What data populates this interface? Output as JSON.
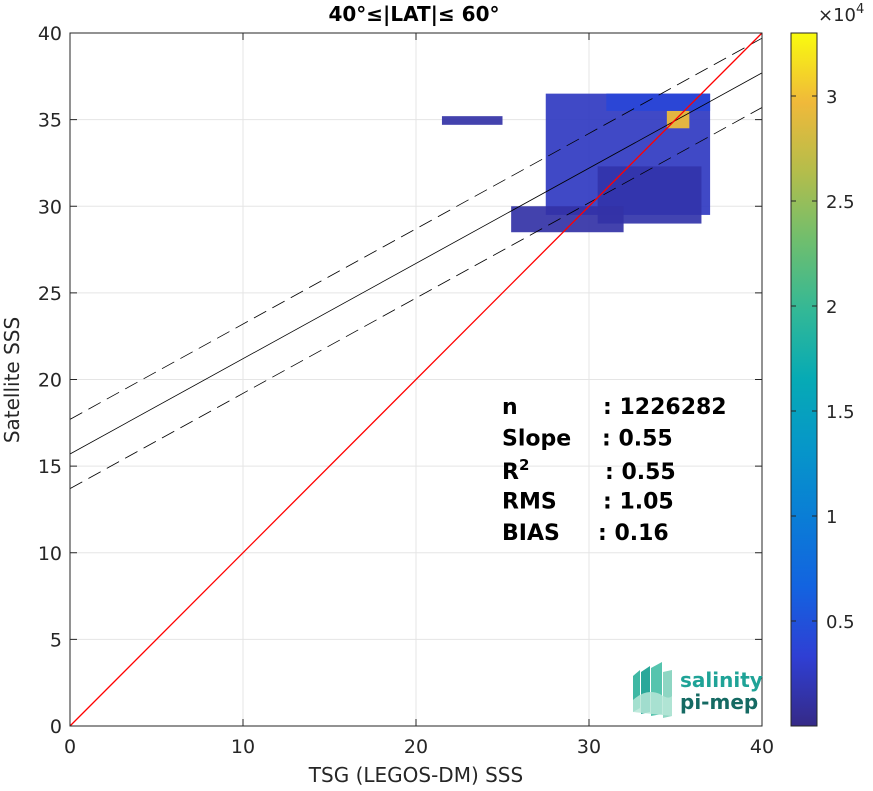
{
  "chart_data": {
    "type": "heatmap",
    "title": "40°≤|LAT|≤ 60°",
    "xlabel": "TSG (LEGOS-DM) SSS",
    "ylabel": "Satellite SSS",
    "xlim": [
      0,
      40
    ],
    "ylim": [
      0,
      40
    ],
    "xticks": [
      "0",
      "10",
      "20",
      "30",
      "40"
    ],
    "yticks": [
      "0",
      "5",
      "10",
      "15",
      "20",
      "25",
      "30",
      "35",
      "40"
    ],
    "grid": true,
    "colorbar": {
      "range": [
        0,
        33000
      ],
      "multiplier": "×10",
      "exponent": "4",
      "ticks": [
        {
          "value": 5000,
          "label": "0.5"
        },
        {
          "value": 10000,
          "label": "1"
        },
        {
          "value": 15000,
          "label": "1.5"
        },
        {
          "value": 20000,
          "label": "2"
        },
        {
          "value": 25000,
          "label": "2.5"
        },
        {
          "value": 30000,
          "label": "3"
        }
      ]
    },
    "one_to_one_line": {
      "x": [
        0,
        40
      ],
      "y": [
        0,
        40
      ],
      "color": "#ff0000"
    },
    "regression_line": {
      "x": [
        0,
        40
      ],
      "y": [
        15.7,
        37.7
      ],
      "color": "#000000"
    },
    "regression_bounds": [
      {
        "x": [
          0,
          40
        ],
        "y": [
          17.7,
          39.7
        ]
      },
      {
        "x": [
          0,
          40
        ],
        "y": [
          13.7,
          35.7
        ]
      }
    ],
    "density_regions": [
      {
        "x": [
          27.5,
          37
        ],
        "y": [
          29.5,
          36.5
        ],
        "density": 2500
      },
      {
        "x": [
          30.5,
          36.5
        ],
        "y": [
          29,
          32.3
        ],
        "density": 1500
      },
      {
        "x": [
          25.5,
          32
        ],
        "y": [
          28.5,
          30
        ],
        "density": 800
      },
      {
        "x": [
          21.5,
          25
        ],
        "y": [
          34.7,
          35.2
        ],
        "density": 300
      },
      {
        "x": [
          31,
          37
        ],
        "y": [
          35.5,
          36.5
        ],
        "density": 4000
      },
      {
        "x": [
          34.5,
          35.8
        ],
        "y": [
          34.5,
          35.5
        ],
        "density": 30000
      }
    ],
    "stats": [
      {
        "label": "n",
        "value": ": 1226282"
      },
      {
        "label": "Slope",
        "value": ": 0.55"
      },
      {
        "label": "R",
        "sup": "2",
        "value": ": 0.55"
      },
      {
        "label": "RMS",
        "value": ": 1.05"
      },
      {
        "label": "BIAS",
        "value": ": 0.16"
      }
    ]
  },
  "logo": {
    "line1": "salinity",
    "line2": "pi-mep"
  },
  "colors": {
    "axis": "#262626",
    "grid": "#e5e5e5",
    "one_to_one": "#ff0000",
    "density_low": "#3e26a8",
    "logo": "#1fa397"
  }
}
